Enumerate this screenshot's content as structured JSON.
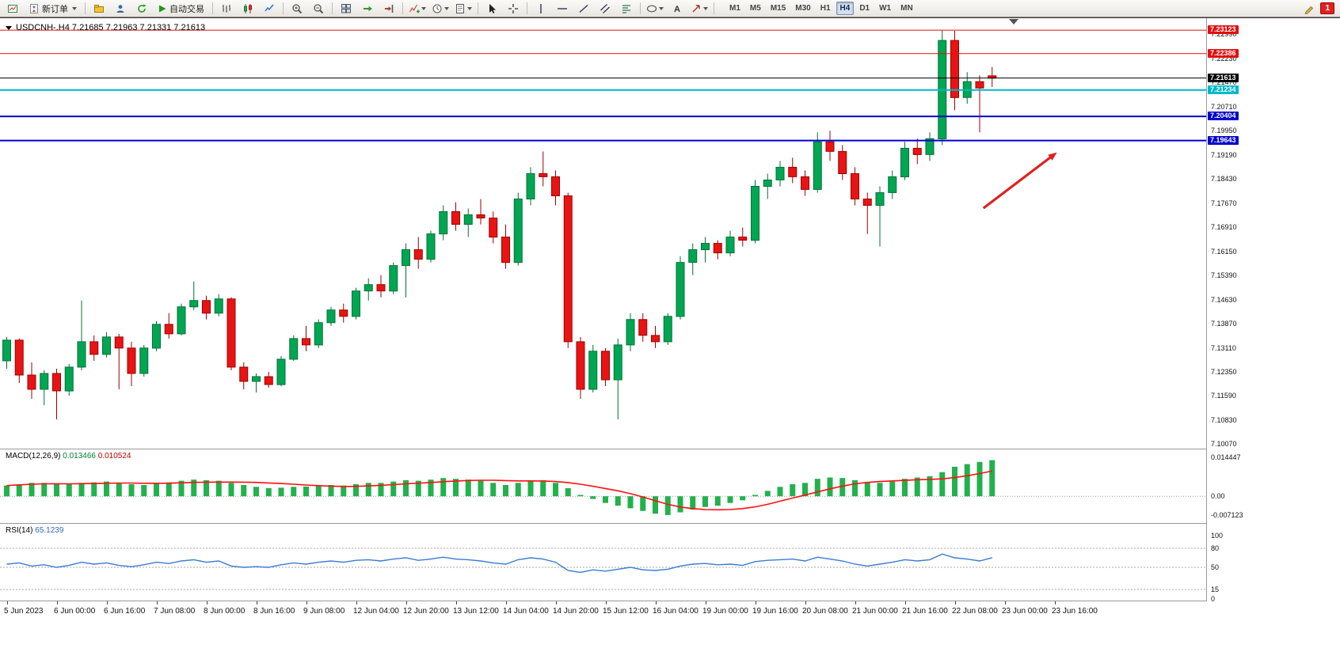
{
  "toolbar": {
    "new_order": "新订单",
    "autotrading": "自动交易",
    "timeframes": [
      "M1",
      "M5",
      "M15",
      "M30",
      "H1",
      "H4",
      "D1",
      "W1",
      "MN"
    ],
    "active_timeframe": "H4",
    "notification_count": "1"
  },
  "chart": {
    "title": "USDCNH-.H4 7.21685 7.21963 7.21331 7.21613",
    "symbol": "USDCNH-",
    "period": "H4",
    "macd_name": "MACD(12,26,9)",
    "macd_value": "0.013466",
    "macd_signal": "0.010524",
    "rsi_name": "RSI(14)",
    "rsi_value": "65.1239"
  },
  "chart_data": {
    "type": "candlestick",
    "symbol": "USDCNH-",
    "timeframe": "H4",
    "ohlc_current": {
      "open": 7.21685,
      "high": 7.21963,
      "low": 7.21331,
      "close": 7.21613
    },
    "ylim": [
      7.0993,
      7.235
    ],
    "y_ticks": [
      "7.22990",
      "7.22230",
      "7.21470",
      "7.20710",
      "7.19950",
      "7.19190",
      "7.18430",
      "7.17670",
      "7.16910",
      "7.16150",
      "7.15390",
      "7.14630",
      "7.13870",
      "7.13110",
      "7.12350",
      "7.11590",
      "7.10830",
      "7.10070"
    ],
    "x_label_step": 4,
    "x_labels": [
      "5 Jun 2023",
      "6 Jun 00:00",
      "6 Jun 16:00",
      "7 Jun 08:00",
      "8 Jun 00:00",
      "8 Jun 16:00",
      "9 Jun 08:00",
      "12 Jun 04:00",
      "12 Jun 20:00",
      "13 Jun 12:00",
      "14 Jun 04:00",
      "14 Jun 20:00",
      "15 Jun 12:00",
      "16 Jun 04:00",
      "19 Jun 00:00",
      "19 Jun 16:00",
      "20 Jun 08:00",
      "21 Jun 00:00",
      "21 Jun 16:00",
      "22 Jun 08:00",
      "23 Jun 00:00",
      "23 Jun 16:00"
    ],
    "candles": [
      [
        7.127,
        7.1345,
        7.1245,
        7.1335
      ],
      [
        7.1335,
        7.134,
        7.12,
        7.1225
      ],
      [
        7.1225,
        7.1265,
        7.115,
        7.118
      ],
      [
        7.118,
        7.124,
        7.113,
        7.123
      ],
      [
        7.123,
        7.1245,
        7.1085,
        7.1175
      ],
      [
        7.1175,
        7.126,
        7.116,
        7.125
      ],
      [
        7.125,
        7.146,
        7.124,
        7.133
      ],
      [
        7.133,
        7.135,
        7.127,
        7.129
      ],
      [
        7.129,
        7.136,
        7.128,
        7.1345
      ],
      [
        7.1345,
        7.1355,
        7.118,
        7.131
      ],
      [
        7.131,
        7.133,
        7.119,
        7.123
      ],
      [
        7.123,
        7.132,
        7.122,
        7.131
      ],
      [
        7.131,
        7.1395,
        7.13,
        7.1385
      ],
      [
        7.1385,
        7.142,
        7.134,
        7.1355
      ],
      [
        7.1355,
        7.145,
        7.135,
        7.144
      ],
      [
        7.144,
        7.152,
        7.143,
        7.146
      ],
      [
        7.146,
        7.1475,
        7.14,
        7.142
      ],
      [
        7.142,
        7.148,
        7.141,
        7.1465
      ],
      [
        7.1465,
        7.147,
        7.124,
        7.125
      ],
      [
        7.125,
        7.1265,
        7.118,
        7.1205
      ],
      [
        7.1205,
        7.123,
        7.117,
        7.122
      ],
      [
        7.122,
        7.1235,
        7.1185,
        7.1195
      ],
      [
        7.1195,
        7.1285,
        7.119,
        7.1275
      ],
      [
        7.1275,
        7.135,
        7.127,
        7.134
      ],
      [
        7.134,
        7.138,
        7.13,
        7.132
      ],
      [
        7.132,
        7.14,
        7.131,
        7.139
      ],
      [
        7.139,
        7.144,
        7.138,
        7.143
      ],
      [
        7.143,
        7.145,
        7.139,
        7.141
      ],
      [
        7.141,
        7.15,
        7.14,
        7.149
      ],
      [
        7.149,
        7.153,
        7.146,
        7.151
      ],
      [
        7.151,
        7.154,
        7.147,
        7.149
      ],
      [
        7.149,
        7.158,
        7.148,
        7.157
      ],
      [
        7.157,
        7.164,
        7.147,
        7.162
      ],
      [
        7.162,
        7.166,
        7.156,
        7.159
      ],
      [
        7.159,
        7.168,
        7.158,
        7.167
      ],
      [
        7.167,
        7.176,
        7.165,
        7.174
      ],
      [
        7.174,
        7.177,
        7.168,
        7.17
      ],
      [
        7.17,
        7.175,
        7.166,
        7.173
      ],
      [
        7.173,
        7.178,
        7.17,
        7.172
      ],
      [
        7.172,
        7.174,
        7.164,
        7.166
      ],
      [
        7.166,
        7.17,
        7.156,
        7.158
      ],
      [
        7.158,
        7.18,
        7.157,
        7.178
      ],
      [
        7.178,
        7.188,
        7.176,
        7.186
      ],
      [
        7.186,
        7.193,
        7.182,
        7.185
      ],
      [
        7.185,
        7.187,
        7.176,
        7.179
      ],
      [
        7.179,
        7.18,
        7.131,
        7.133
      ],
      [
        7.133,
        7.1345,
        7.115,
        7.118
      ],
      [
        7.118,
        7.132,
        7.117,
        7.13
      ],
      [
        7.13,
        7.131,
        7.119,
        7.121
      ],
      [
        7.121,
        7.134,
        7.1085,
        7.132
      ],
      [
        7.132,
        7.142,
        7.13,
        7.14
      ],
      [
        7.14,
        7.142,
        7.133,
        7.135
      ],
      [
        7.135,
        7.138,
        7.131,
        7.133
      ],
      [
        7.133,
        7.142,
        7.132,
        7.141
      ],
      [
        7.141,
        7.16,
        7.14,
        7.158
      ],
      [
        7.158,
        7.164,
        7.154,
        7.162
      ],
      [
        7.162,
        7.166,
        7.158,
        7.164
      ],
      [
        7.164,
        7.165,
        7.159,
        7.161
      ],
      [
        7.161,
        7.168,
        7.16,
        7.166
      ],
      [
        7.166,
        7.169,
        7.163,
        7.165
      ],
      [
        7.165,
        7.184,
        7.164,
        7.182
      ],
      [
        7.182,
        7.186,
        7.178,
        7.184
      ],
      [
        7.184,
        7.19,
        7.182,
        7.188
      ],
      [
        7.188,
        7.191,
        7.183,
        7.185
      ],
      [
        7.185,
        7.187,
        7.179,
        7.181
      ],
      [
        7.181,
        7.199,
        7.18,
        7.196
      ],
      [
        7.196,
        7.1995,
        7.19,
        7.193
      ],
      [
        7.193,
        7.195,
        7.184,
        7.186
      ],
      [
        7.186,
        7.188,
        7.176,
        7.178
      ],
      [
        7.178,
        7.18,
        7.167,
        7.176
      ],
      [
        7.176,
        7.182,
        7.163,
        7.18
      ],
      [
        7.18,
        7.187,
        7.178,
        7.185
      ],
      [
        7.185,
        7.196,
        7.184,
        7.194
      ],
      [
        7.194,
        7.197,
        7.189,
        7.192
      ],
      [
        7.192,
        7.199,
        7.19,
        7.197
      ],
      [
        7.197,
        7.2312,
        7.195,
        7.228
      ],
      [
        7.228,
        7.231,
        7.206,
        7.21
      ],
      [
        7.21,
        7.218,
        7.208,
        7.215
      ],
      [
        7.215,
        7.217,
        7.199,
        7.213
      ],
      [
        7.21685,
        7.21963,
        7.21331,
        7.21613
      ]
    ],
    "hlines": [
      {
        "price": 7.23123,
        "label": "7.23123",
        "color": "#e01010",
        "width": 1
      },
      {
        "price": 7.22386,
        "label": "7.22386",
        "color": "#e01010",
        "width": 1
      },
      {
        "price": 7.21613,
        "label": "7.21613",
        "color": "#000000",
        "width": 1
      },
      {
        "price": 7.21234,
        "label": "7.21234",
        "color": "#00b8c8",
        "width": 2
      },
      {
        "price": 7.20404,
        "label": "7.20404",
        "color": "#0000cc",
        "width": 2
      },
      {
        "price": 7.19643,
        "label": "7.19643",
        "color": "#0000cc",
        "width": 2
      }
    ],
    "arrow": {
      "index1": 78.3,
      "price1": 7.1751,
      "index2": 84.2,
      "price2": 7.1927,
      "color": "#dd2222"
    },
    "colors": {
      "up": "#00a651",
      "up_stroke": "#00703a",
      "down": "#e81414",
      "down_stroke": "#9e0000",
      "macd_bar": "#22b14c",
      "macd_signal": "#ff1010",
      "rsi_line": "#3a7bd5"
    },
    "indicators": [
      {
        "name": "MACD",
        "label": "MACD(12,26,9) 0.013466 0.010524",
        "type": "histogram_with_signal",
        "signal_period": 9,
        "ylim": [
          -0.0085,
          0.016
        ],
        "y_ticks": [
          {
            "v": 0.014447,
            "t": "0.014447"
          },
          {
            "v": 0,
            "t": "0.00"
          },
          {
            "v": -0.007123,
            "t": "-0.007123"
          }
        ],
        "values": [
          0.004,
          0.0045,
          0.005,
          0.005,
          0.0048,
          0.0045,
          0.005,
          0.0052,
          0.0055,
          0.005,
          0.0045,
          0.0042,
          0.0048,
          0.0052,
          0.0058,
          0.0062,
          0.006,
          0.0058,
          0.005,
          0.0042,
          0.0035,
          0.003,
          0.0032,
          0.0035,
          0.0036,
          0.0038,
          0.0042,
          0.004,
          0.0045,
          0.005,
          0.005,
          0.0055,
          0.006,
          0.0058,
          0.0062,
          0.0068,
          0.0065,
          0.0062,
          0.0058,
          0.005,
          0.0042,
          0.005,
          0.0058,
          0.006,
          0.005,
          0.003,
          0.0005,
          -0.001,
          -0.0025,
          -0.0035,
          -0.0045,
          -0.0055,
          -0.0065,
          -0.007,
          -0.006,
          -0.005,
          -0.004,
          -0.0035,
          -0.0025,
          -0.0015,
          0.0005,
          0.002,
          0.0035,
          0.0045,
          0.005,
          0.0065,
          0.007,
          0.0068,
          0.006,
          0.0052,
          0.005,
          0.0055,
          0.0065,
          0.007,
          0.0075,
          0.009,
          0.011,
          0.012,
          0.0128,
          0.013466
        ]
      },
      {
        "name": "RSI",
        "label": "RSI(14) 65.1239",
        "type": "line",
        "ylim": [
          0,
          100
        ],
        "levels": [
          80,
          50,
          15
        ],
        "y_ticks": [
          {
            "v": 100,
            "t": "100"
          },
          {
            "v": 80,
            "t": "80"
          },
          {
            "v": 50,
            "t": "50"
          },
          {
            "v": 15,
            "t": "15"
          },
          {
            "v": 0,
            "t": "0"
          }
        ],
        "values": [
          55,
          57,
          52,
          54,
          50,
          53,
          58,
          55,
          57,
          53,
          51,
          54,
          58,
          56,
          60,
          62,
          58,
          60,
          52,
          50,
          51,
          50,
          54,
          57,
          55,
          58,
          60,
          58,
          61,
          62,
          60,
          63,
          65,
          61,
          63,
          66,
          63,
          62,
          60,
          57,
          55,
          62,
          65,
          63,
          58,
          45,
          42,
          46,
          44,
          47,
          50,
          46,
          45,
          47,
          52,
          55,
          56,
          54,
          55,
          53,
          59,
          61,
          62,
          63,
          60,
          66,
          63,
          60,
          55,
          52,
          55,
          58,
          62,
          60,
          62,
          71,
          65,
          63,
          60,
          65.1239
        ]
      }
    ]
  }
}
